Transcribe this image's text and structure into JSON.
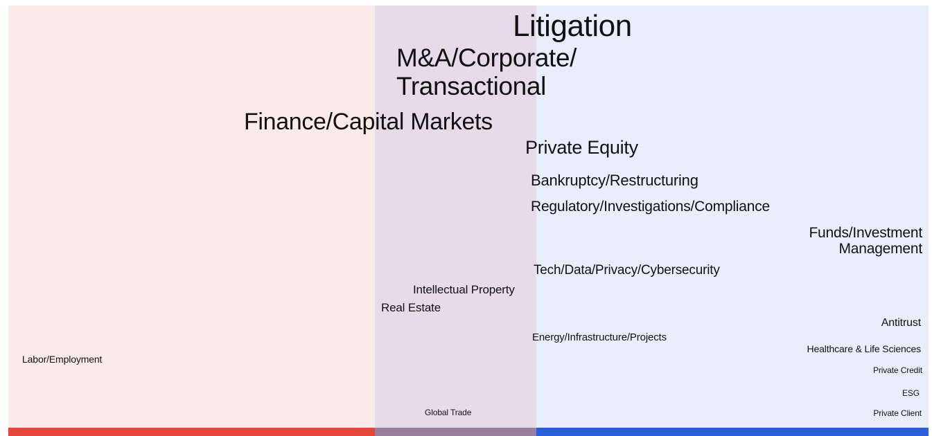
{
  "terms": [
    {
      "lines": [
        "Litigation"
      ]
    },
    {
      "lines": [
        "M&A/Corporate/",
        "Transactional"
      ]
    },
    {
      "lines": [
        "Finance/Capital Markets"
      ]
    },
    {
      "lines": [
        "Private Equity"
      ]
    },
    {
      "lines": [
        "Bankruptcy/Restructuring"
      ]
    },
    {
      "lines": [
        "Regulatory/Investigations/Compliance"
      ]
    },
    {
      "lines": [
        "Funds/Investment",
        "Management"
      ]
    },
    {
      "lines": [
        "Tech/Data/Privacy/Cybersecurity"
      ]
    },
    {
      "lines": [
        "Intellectual Property"
      ]
    },
    {
      "lines": [
        "Real Estate"
      ]
    },
    {
      "lines": [
        "Antitrust"
      ]
    },
    {
      "lines": [
        "Energy/Infrastructure/Projects"
      ]
    },
    {
      "lines": [
        "Healthcare & Life Sciences"
      ]
    },
    {
      "lines": [
        "Labor/Employment"
      ]
    },
    {
      "lines": [
        "Private Credit"
      ]
    },
    {
      "lines": [
        "ESG"
      ]
    },
    {
      "lines": [
        "Global Trade"
      ]
    },
    {
      "lines": [
        "Private Client"
      ]
    }
  ]
}
